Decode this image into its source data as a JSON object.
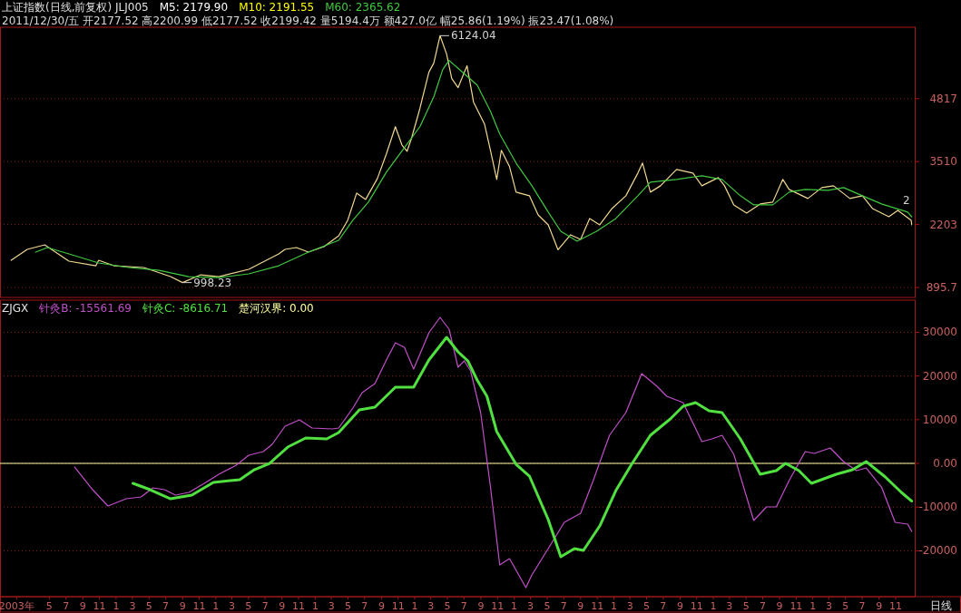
{
  "chart_data": [
    {
      "type": "line",
      "title": "上证指数(日线,前复权) JLJ005",
      "annotations": [
        "2011/12/30/五 开2177.52 高2200.99 低2177.52 收2199.42 量5194.4万 额427.0亿 幅25.86(1.19%) 振23.47(1.08%)",
        "M5: 2179.90",
        "M10: 2191.55",
        {
          "text": "6124.04",
          "x": "2007-04-04",
          "y": 6124.04
        },
        {
          "text": "998.23",
          "x": "2004-09-01",
          "y": 998.23
        },
        {
          "text": "2",
          "x": "2011-12-30",
          "y": 2480
        }
      ],
      "xlim": [
        "2002-11-01",
        "2012-01-10"
      ],
      "ylim": [
        690,
        6300
      ],
      "yticks": [
        895.7,
        2203,
        3510,
        4817
      ],
      "grid": "y",
      "tick_labels": "y",
      "legend": "top",
      "series": [
        {
          "color": "#f0d890",
          "x": [
            "2002-12-12",
            "2003-02-09",
            "2003-04-14",
            "2003-07-12",
            "2003-10-19",
            "2003-10-29",
            "2003-12-24",
            "2004-04-12",
            "2004-07-19",
            "2004-09-01",
            "2004-11-07",
            "2005-01-12",
            "2005-05-02",
            "2005-08-20",
            "2005-09-12",
            "2005-10-24",
            "2005-12-07",
            "2006-02-02",
            "2006-03-28",
            "2006-04-30",
            "2006-06-02",
            "2006-07-05",
            "2006-08-17",
            "2006-09-19",
            "2006-10-22",
            "2006-11-15",
            "2006-12-04",
            "2006-12-20",
            "2007-01-20",
            "2007-02-22",
            "2007-03-12",
            "2007-04-04",
            "2007-04-28",
            "2007-05-17",
            "2007-06-09",
            "2007-07-12",
            "2007-08-05",
            "2007-09-14",
            "2007-10-06",
            "2007-10-29",
            "2007-11-15",
            "2007-12-15",
            "2008-01-08",
            "2008-02-26",
            "2008-03-29",
            "2008-05-05",
            "2008-06-10",
            "2008-07-26",
            "2008-09-01",
            "2008-10-04",
            "2008-11-10",
            "2008-12-25",
            "2009-02-14",
            "2009-03-30",
            "2009-04-16",
            "2009-05-15",
            "2009-06-21",
            "2009-08-19",
            "2009-10-18",
            "2009-11-20",
            "2010-01-19",
            "2010-02-11",
            "2010-03-17",
            "2010-05-03",
            "2010-06-22",
            "2010-08-07",
            "2010-09-13",
            "2010-10-06",
            "2010-12-14",
            "2011-02-03",
            "2011-03-18",
            "2011-05-17",
            "2011-07-02",
            "2011-08-08",
            "2011-10-07",
            "2011-11-09",
            "2011-12-28",
            "2011-12-30"
          ],
          "values": [
            1461,
            1688,
            1782,
            1443,
            1348,
            1461,
            1348,
            1311,
            1122,
            998.23,
            1160,
            1122,
            1273,
            1594,
            1688,
            1726,
            1631,
            1744,
            1971,
            2291,
            2857,
            2725,
            3159,
            3668,
            4234,
            3857,
            3725,
            3989,
            4611,
            5366,
            5554,
            6124.04,
            5743,
            5234,
            5045,
            5498,
            4743,
            4291,
            3744,
            3140,
            3744,
            3404,
            2876,
            2801,
            2404,
            2197,
            1680,
            1990,
            1895,
            2329,
            2197,
            2536,
            2801,
            3272,
            3480,
            2876,
            3008,
            3348,
            3272,
            3008,
            3178,
            3008,
            2612,
            2442,
            2631,
            2669,
            3140,
            2933,
            2744,
            2970,
            3008,
            2744,
            2801,
            2536,
            2367,
            2499,
            2291,
            2199.42
          ]
        },
        {
          "name": "M60: 2365.62",
          "color": "#40c840",
          "x": [
            "2003-03-12",
            "2003-04-24",
            "2003-07-12",
            "2003-10-29",
            "2004-02-16",
            "2004-06-07",
            "2004-09-24",
            "2005-01-12",
            "2005-05-02",
            "2005-08-20",
            "2005-12-07",
            "2006-03-28",
            "2006-05-19",
            "2006-07-15",
            "2006-09-19",
            "2006-11-24",
            "2007-01-20",
            "2007-03-12",
            "2007-04-14",
            "2007-05-07",
            "2007-08-18",
            "2007-10-06",
            "2007-11-09",
            "2008-01-08",
            "2008-03-06",
            "2008-05-05",
            "2008-06-20",
            "2008-08-19",
            "2008-10-30",
            "2009-01-08",
            "2009-03-30",
            "2009-05-15",
            "2009-08-19",
            "2009-11-20",
            "2010-02-02",
            "2010-04-10",
            "2010-05-29",
            "2010-08-07",
            "2010-10-06",
            "2010-12-04",
            "2011-02-26",
            "2011-04-24",
            "2011-07-02",
            "2011-09-10",
            "2011-12-15",
            "2011-12-30"
          ],
          "values": [
            1631,
            1726,
            1594,
            1405,
            1311,
            1254,
            1122,
            1103,
            1179,
            1348,
            1631,
            1876,
            2291,
            2669,
            3291,
            3800,
            4234,
            4856,
            5422,
            5611,
            5101,
            4555,
            4083,
            3480,
            3008,
            2461,
            2065,
            1857,
            2065,
            2329,
            2801,
            3083,
            3140,
            3216,
            3140,
            2801,
            2612,
            2612,
            2876,
            2933,
            2914,
            2970,
            2801,
            2631,
            2461,
            2365.62
          ]
        }
      ]
    },
    {
      "type": "line",
      "title": "ZJGX",
      "annotations": [
        "日线"
      ],
      "xlim": [
        "2002-11-01",
        "2012-01-10"
      ],
      "ylim": [
        -30500,
        37350
      ],
      "yticks": [
        30000,
        20000,
        10000,
        {
          "value": 0,
          "label": "0.00"
        },
        -10000,
        -20000
      ],
      "grid": "y",
      "legend": "top left",
      "xticks": [
        {
          "value": "2003-01",
          "label": "2003年"
        },
        {
          "value": "2003-05",
          "label": "5"
        },
        {
          "value": "2003-07",
          "label": "7"
        },
        {
          "value": "2003-09",
          "label": "9"
        },
        {
          "value": "2003-11",
          "label": "11"
        },
        {
          "value": "2004-01",
          "label": "1"
        },
        {
          "value": "2004-03",
          "label": "3"
        },
        {
          "value": "2004-05",
          "label": "5"
        },
        {
          "value": "2004-07",
          "label": "7"
        },
        {
          "value": "2004-09",
          "label": "9"
        },
        {
          "value": "2004-11",
          "label": "11"
        },
        {
          "value": "2005-01",
          "label": "1"
        },
        {
          "value": "2005-03",
          "label": "3"
        },
        {
          "value": "2005-05",
          "label": "5"
        },
        {
          "value": "2005-07",
          "label": "7"
        },
        {
          "value": "2005-09",
          "label": "9"
        },
        {
          "value": "2005-11",
          "label": "11"
        },
        {
          "value": "2006-01",
          "label": "1"
        },
        {
          "value": "2006-03",
          "label": "3"
        },
        {
          "value": "2006-05",
          "label": "5"
        },
        {
          "value": "2006-07",
          "label": "7"
        },
        {
          "value": "2006-09",
          "label": "9"
        },
        {
          "value": "2006-11",
          "label": "11"
        },
        {
          "value": "2007-01",
          "label": "1"
        },
        {
          "value": "2007-03",
          "label": "3"
        },
        {
          "value": "2007-05",
          "label": "5"
        },
        {
          "value": "2007-07",
          "label": "7"
        },
        {
          "value": "2007-09",
          "label": "9"
        },
        {
          "value": "2007-11",
          "label": "11"
        },
        {
          "value": "2008-01",
          "label": "1"
        },
        {
          "value": "2008-03",
          "label": "3"
        },
        {
          "value": "2008-05",
          "label": "5"
        },
        {
          "value": "2008-07",
          "label": "7"
        },
        {
          "value": "2008-09",
          "label": "9"
        },
        {
          "value": "2008-11",
          "label": "11"
        },
        {
          "value": "2009-01",
          "label": "1"
        },
        {
          "value": "2009-03",
          "label": "3"
        },
        {
          "value": "2009-05",
          "label": "5"
        },
        {
          "value": "2009-07",
          "label": "7"
        },
        {
          "value": "2009-09",
          "label": "9"
        },
        {
          "value": "2009-11",
          "label": "11"
        },
        {
          "value": "2010-01",
          "label": "1"
        },
        {
          "value": "2010-03",
          "label": "3"
        },
        {
          "value": "2010-05",
          "label": "5"
        },
        {
          "value": "2010-07",
          "label": "7"
        },
        {
          "value": "2010-09",
          "label": "9"
        },
        {
          "value": "2010-11",
          "label": "11"
        },
        {
          "value": "2011-01",
          "label": "1"
        },
        {
          "value": "2011-03",
          "label": "3"
        },
        {
          "value": "2011-05",
          "label": "5"
        },
        {
          "value": "2011-07",
          "label": "7"
        },
        {
          "value": "2011-09",
          "label": "9"
        },
        {
          "value": "2011-11",
          "label": "11"
        }
      ],
      "ref_lines": [
        {
          "axis": "y",
          "value": 0,
          "label": "楚河汉界: 0.00",
          "color": "#ffffa0"
        }
      ],
      "series": [
        {
          "name": "针灸B: -15561.69",
          "color": "#c050c8",
          "x": [
            "2003-08-02",
            "2003-10-07",
            "2003-12-02",
            "2004-02-07",
            "2004-04-02",
            "2004-05-15",
            "2004-06-27",
            "2004-08-06",
            "2004-09-24",
            "2004-11-20",
            "2005-01-12",
            "2005-03-17",
            "2005-05-02",
            "2005-06-24",
            "2005-07-27",
            "2005-09-12",
            "2005-11-04",
            "2005-12-20",
            "2006-03-05",
            "2006-03-28",
            "2006-05-19",
            "2006-06-22",
            "2006-08-08",
            "2006-09-19",
            "2006-10-22",
            "2006-11-24",
            "2006-12-28",
            "2007-02-22",
            "2007-04-04",
            "2007-05-07",
            "2007-06-09",
            "2007-07-02",
            "2007-07-25",
            "2007-08-31",
            "2007-10-06",
            "2007-11-09",
            "2007-12-15",
            "2008-02-13",
            "2008-03-06",
            "2008-05-05",
            "2008-07-03",
            "2008-09-01",
            "2008-10-17",
            "2008-12-16",
            "2009-02-14",
            "2009-04-13",
            "2009-06-08",
            "2009-07-14",
            "2009-09-12",
            "2009-11-20",
            "2009-12-27",
            "2010-02-02",
            "2010-03-17",
            "2010-05-03",
            "2010-05-29",
            "2010-07-15",
            "2010-08-20",
            "2010-10-06",
            "2010-12-04",
            "2011-01-07",
            "2011-03-06",
            "2011-04-24",
            "2011-06-10",
            "2011-07-16",
            "2011-09-10",
            "2011-10-30",
            "2011-12-15",
            "2011-12-30"
          ],
          "values": [
            -830,
            -6018,
            -9753,
            -8093,
            -7678,
            -5603,
            -6018,
            -7263,
            -6640,
            -4565,
            -2490,
            -415,
            1868,
            2698,
            4358,
            8508,
            9960,
            8093,
            7885,
            8093,
            12658,
            16185,
            18260,
            23655,
            27598,
            26560,
            21580,
            29880,
            33408,
            30710,
            21995,
            23448,
            21165,
            11620,
            -5395,
            -23240,
            -21788,
            -28428,
            -25523,
            -19505,
            -13488,
            -11413,
            -3943,
            6433,
            11620,
            20543,
            17638,
            15355,
            13903,
            4980,
            5603,
            6433,
            2075,
            -7678,
            -13073,
            -9960,
            -9960,
            -3943,
            2698,
            2283,
            3528,
            415,
            -1660,
            -1038,
            -5395,
            -13488,
            -13903,
            -15561.69
          ]
        },
        {
          "name": "针灸C: -8616.71",
          "color": "#50e040",
          "x": [
            "2004-03-03",
            "2004-05-05",
            "2004-07-19",
            "2004-10-05",
            "2004-12-23",
            "2005-03-30",
            "2005-05-22",
            "2005-07-17",
            "2005-09-22",
            "2005-11-27",
            "2006-02-12",
            "2006-03-28",
            "2006-06-12",
            "2006-08-08",
            "2006-10-22",
            "2006-12-28",
            "2007-02-22",
            "2007-04-28",
            "2007-06-09",
            "2007-07-15",
            "2007-08-18",
            "2007-09-23",
            "2007-10-29",
            "2008-01-08",
            "2008-02-26",
            "2008-05-05",
            "2008-06-20",
            "2008-08-09",
            "2008-09-11",
            "2008-11-10",
            "2009-01-08",
            "2009-03-07",
            "2009-05-15",
            "2009-07-27",
            "2009-09-12",
            "2009-10-28",
            "2009-12-16",
            "2010-02-02",
            "2010-04-10",
            "2010-06-22",
            "2010-08-20",
            "2010-09-23",
            "2010-11-11",
            "2010-12-27",
            "2011-03-28",
            "2011-05-27",
            "2011-07-16",
            "2011-09-24",
            "2011-11-22",
            "2011-12-30"
          ],
          "values": [
            -4565,
            -6018,
            -8093,
            -7263,
            -4358,
            -3735,
            -1453,
            0,
            3735,
            5810,
            5603,
            7055,
            12243,
            12865,
            17430,
            17430,
            23655,
            28843,
            25523,
            23448,
            19090,
            15355,
            7263,
            -208,
            -2905,
            -12865,
            -21373,
            -19505,
            -19920,
            -14318,
            -6225,
            -208,
            6433,
            10168,
            13073,
            13903,
            12035,
            11620,
            5603,
            -2490,
            -1660,
            0,
            -1660,
            -4565,
            -2490,
            -1453,
            415,
            -3113,
            -6640,
            -8616.71
          ]
        }
      ]
    }
  ]
}
